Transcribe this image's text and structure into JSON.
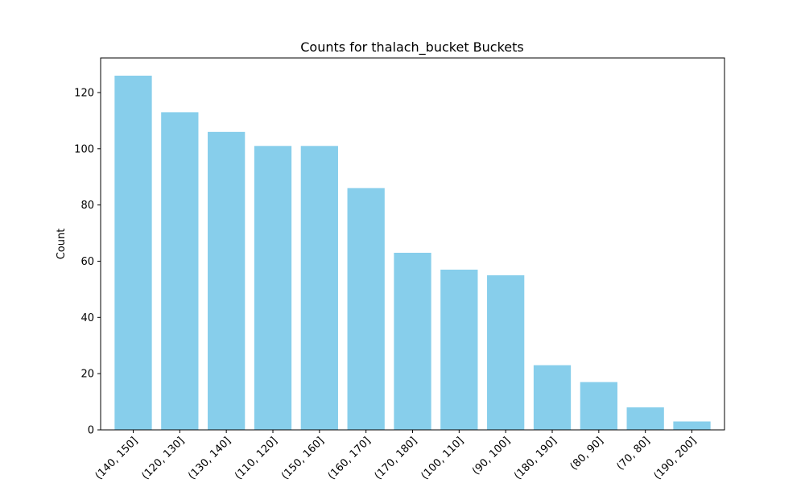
{
  "chart_data": {
    "type": "bar",
    "title": "Counts for thalach_bucket Buckets",
    "xlabel": "",
    "ylabel": "Count",
    "categories": [
      "(140, 150]",
      "(120, 130]",
      "(130, 140]",
      "(110, 120]",
      "(150, 160]",
      "(160, 170]",
      "(170, 180]",
      "(100, 110]",
      "(90, 100]",
      "(180, 190]",
      "(80, 90]",
      "(70, 80]",
      "(190, 200]"
    ],
    "values": [
      126,
      113,
      106,
      101,
      101,
      86,
      63,
      57,
      55,
      23,
      17,
      8,
      3
    ],
    "ylim": [
      0,
      132.3
    ],
    "yticks": [
      0,
      20,
      40,
      60,
      80,
      100,
      120
    ],
    "bar_color": "#87ceeb",
    "grid": false,
    "legend": "none"
  }
}
